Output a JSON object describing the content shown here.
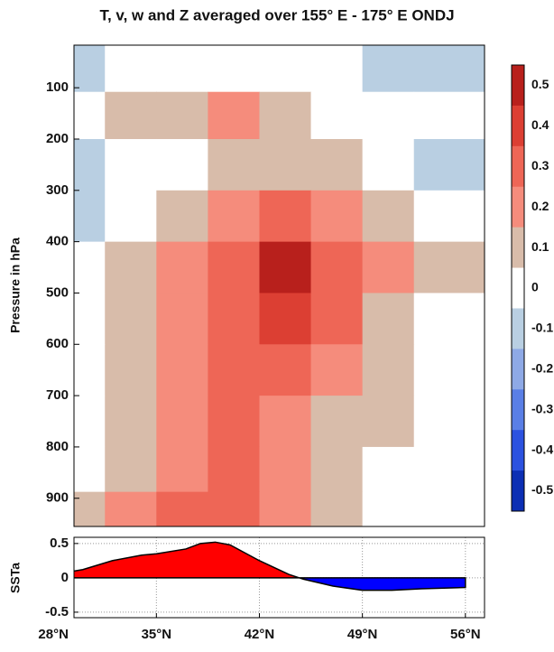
{
  "chart_data": [
    {
      "type": "contour",
      "title": "T, v, w and Z averaged over 155° E - 175° E  ONDJ",
      "y_label": "Pressure in hPa",
      "x": [
        29.75,
        33.25,
        36.75,
        40.25,
        43.75,
        47.25,
        50.75,
        54.25
      ],
      "y": [
        66,
        150,
        250,
        350,
        450,
        550,
        650,
        750,
        850,
        925
      ],
      "values": [
        [
          -0.1,
          0,
          0,
          0,
          0,
          0,
          -0.1,
          -0.1
        ],
        [
          0,
          0.1,
          0.1,
          0.2,
          0.1,
          0,
          0,
          0
        ],
        [
          -0.1,
          0,
          0,
          0.1,
          0.1,
          0.1,
          0,
          -0.1
        ],
        [
          -0.1,
          0,
          0.1,
          0.2,
          0.3,
          0.2,
          0.1,
          0
        ],
        [
          0,
          0.1,
          0.2,
          0.3,
          0.5,
          0.3,
          0.2,
          0.1
        ],
        [
          0,
          0.1,
          0.2,
          0.3,
          0.4,
          0.3,
          0.1,
          0
        ],
        [
          0,
          0.1,
          0.2,
          0.3,
          0.3,
          0.2,
          0.1,
          0
        ],
        [
          0,
          0.1,
          0.2,
          0.3,
          0.2,
          0.1,
          0.1,
          0
        ],
        [
          0,
          0.1,
          0.2,
          0.3,
          0.2,
          0.1,
          0,
          0
        ],
        [
          0.1,
          0.2,
          0.3,
          0.3,
          0.2,
          0.1,
          0,
          0
        ]
      ],
      "xlim": [
        29.4,
        57.3
      ],
      "ylim": [
        17,
        955
      ],
      "y_inverted": true,
      "yticks": [
        100,
        200,
        300,
        400,
        500,
        600,
        700,
        800,
        900
      ],
      "colorbar": {
        "ticks": [
          0.5,
          0.4,
          0.3,
          0.2,
          0.1,
          0,
          -0.1,
          -0.2,
          -0.3,
          -0.4,
          -0.5
        ],
        "colors": [
          "#b8201c",
          "#dc3f33",
          "#ee6656",
          "#f58c7c",
          "#d8bcaa",
          "#ffffff",
          "#b9cfe2",
          "#8ea9e6",
          "#5a7fe6",
          "#2c52e0",
          "#0c2fb4"
        ]
      }
    },
    {
      "type": "area",
      "y_label": "SSTa",
      "x": [
        28,
        30,
        32,
        34,
        35,
        37,
        38,
        39,
        40,
        42,
        44,
        45,
        47,
        49,
        51,
        53,
        56
      ],
      "values": [
        0.05,
        0.12,
        0.25,
        0.33,
        0.35,
        0.42,
        0.5,
        0.52,
        0.48,
        0.25,
        0.05,
        -0.02,
        -0.12,
        -0.18,
        -0.18,
        -0.16,
        -0.14
      ],
      "colors": [
        "#ff0000",
        "#0000ff"
      ],
      "xlim": [
        29.4,
        57.3
      ],
      "ylim": [
        -0.58,
        0.59
      ],
      "yticks": [
        0.5,
        0,
        -0.5
      ],
      "xticks": [
        {
          "value": 28,
          "label": "28°N"
        },
        {
          "value": 35,
          "label": "35°N"
        },
        {
          "value": 42,
          "label": "42°N"
        },
        {
          "value": 49,
          "label": "49°N"
        },
        {
          "value": 56,
          "label": "56°N"
        }
      ],
      "grid": true
    }
  ]
}
